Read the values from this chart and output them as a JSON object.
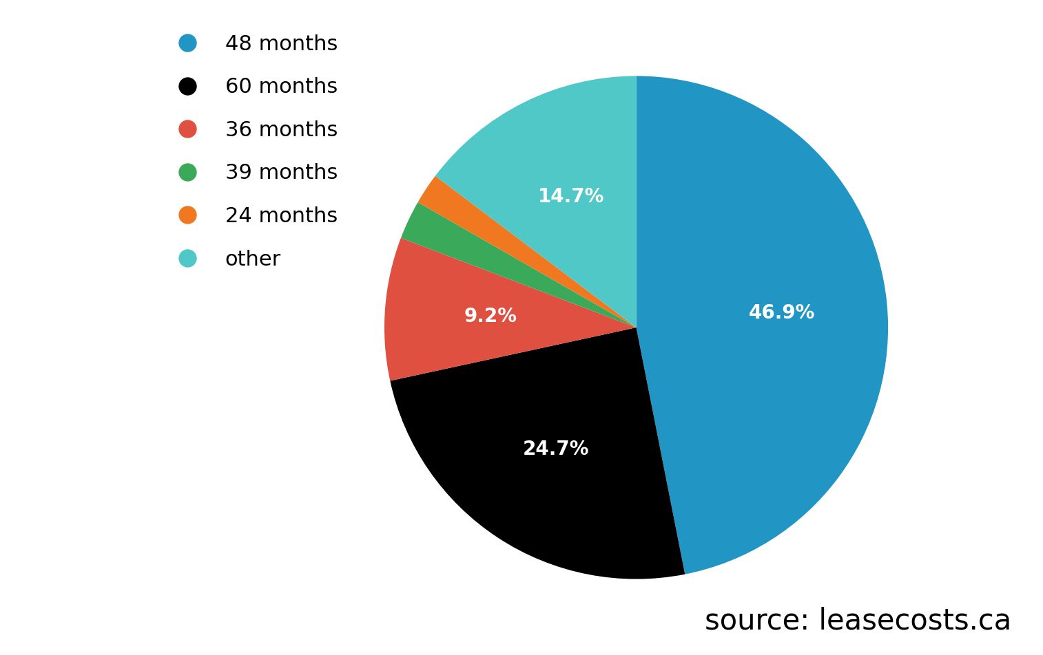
{
  "labels": [
    "48 months",
    "60 months",
    "36 months",
    "39 months",
    "24 months",
    "other"
  ],
  "values": [
    46.9,
    24.7,
    9.2,
    2.5,
    2.0,
    14.7
  ],
  "colors": [
    "#2196c4",
    "#000000",
    "#e05040",
    "#3aaa5a",
    "#f07820",
    "#50c8c8"
  ],
  "pct_labels": [
    "46.9%",
    "24.7%",
    "9.2%",
    "",
    "",
    "14.7%"
  ],
  "startangle": 90,
  "source_text": "source: leasecosts.ca",
  "legend_fontsize": 22,
  "pct_fontsize": 20,
  "source_fontsize": 30,
  "background_color": "#ffffff"
}
